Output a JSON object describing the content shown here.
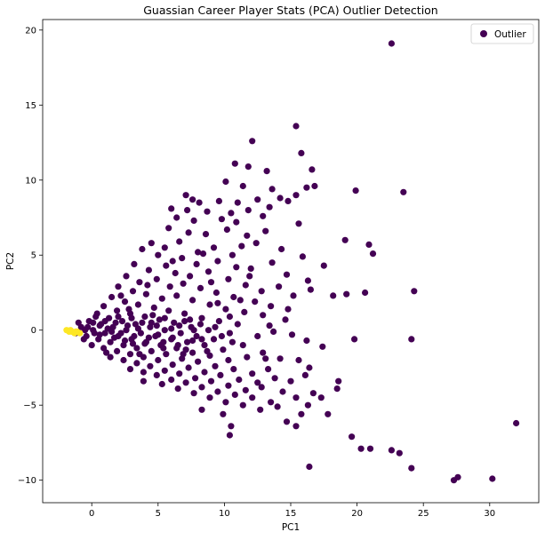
{
  "chart_data": {
    "type": "scatter",
    "title": "Guassian Career Player Stats (PCA) Outlier Detection",
    "xlabel": "PC1",
    "ylabel": "PC2",
    "xlim": [
      -3.7,
      33.7
    ],
    "ylim": [
      -11.5,
      20.7
    ],
    "xticks": [
      0,
      5,
      10,
      15,
      20,
      25,
      30
    ],
    "yticks": [
      -10,
      -5,
      0,
      5,
      10,
      15,
      20
    ],
    "grid": false,
    "legend": {
      "placement": "top-right",
      "entries": [
        "Outlier"
      ]
    },
    "colors": {
      "inlier": "#440154",
      "outlier": "#fde725"
    },
    "series": [
      {
        "name": "Outlier",
        "color": "#440154",
        "points": [
          [
            22.6,
            19.1
          ],
          [
            15.4,
            13.6
          ],
          [
            12.1,
            12.6
          ],
          [
            15.8,
            11.8
          ],
          [
            10.8,
            11.1
          ],
          [
            11.8,
            10.9
          ],
          [
            13.2,
            10.6
          ],
          [
            16.6,
            10.7
          ],
          [
            10.1,
            9.9
          ],
          [
            11.4,
            9.6
          ],
          [
            13.6,
            9.4
          ],
          [
            15.4,
            9.0
          ],
          [
            16.2,
            9.5
          ],
          [
            16.8,
            9.6
          ],
          [
            19.9,
            9.3
          ],
          [
            23.5,
            9.2
          ],
          [
            7.1,
            9.0
          ],
          [
            7.6,
            8.7
          ],
          [
            8.1,
            8.5
          ],
          [
            9.6,
            8.6
          ],
          [
            11.0,
            8.5
          ],
          [
            12.5,
            8.7
          ],
          [
            14.2,
            8.8
          ],
          [
            14.8,
            8.6
          ],
          [
            6.0,
            8.1
          ],
          [
            7.2,
            8.0
          ],
          [
            8.7,
            7.9
          ],
          [
            10.5,
            7.8
          ],
          [
            11.8,
            8.0
          ],
          [
            13.4,
            8.2
          ],
          [
            6.4,
            7.5
          ],
          [
            7.7,
            7.3
          ],
          [
            9.8,
            7.4
          ],
          [
            10.9,
            7.2
          ],
          [
            12.9,
            7.6
          ],
          [
            15.6,
            7.1
          ],
          [
            5.8,
            6.8
          ],
          [
            7.3,
            6.5
          ],
          [
            8.6,
            6.4
          ],
          [
            10.2,
            6.7
          ],
          [
            11.7,
            6.3
          ],
          [
            13.1,
            6.6
          ],
          [
            19.1,
            6.0
          ],
          [
            20.9,
            5.7
          ],
          [
            21.2,
            5.1
          ],
          [
            14.3,
            5.4
          ],
          [
            15.9,
            4.9
          ],
          [
            17.5,
            4.3
          ],
          [
            4.5,
            5.8
          ],
          [
            5.5,
            5.5
          ],
          [
            6.6,
            5.9
          ],
          [
            8.0,
            5.2
          ],
          [
            9.2,
            5.5
          ],
          [
            10.6,
            5.0
          ],
          [
            11.3,
            5.6
          ],
          [
            12.4,
            5.8
          ],
          [
            13.6,
            4.5
          ],
          [
            3.8,
            5.4
          ],
          [
            5.0,
            5.0
          ],
          [
            6.8,
            4.8
          ],
          [
            7.9,
            4.4
          ],
          [
            9.5,
            4.6
          ],
          [
            10.9,
            4.2
          ],
          [
            12.0,
            4.1
          ],
          [
            14.7,
            3.7
          ],
          [
            16.3,
            3.3
          ],
          [
            3.2,
            4.4
          ],
          [
            4.3,
            4.0
          ],
          [
            5.6,
            4.3
          ],
          [
            6.3,
            3.8
          ],
          [
            7.4,
            3.6
          ],
          [
            8.8,
            3.9
          ],
          [
            10.3,
            3.4
          ],
          [
            11.6,
            3.0
          ],
          [
            12.8,
            2.6
          ],
          [
            14.1,
            2.9
          ],
          [
            15.2,
            2.3
          ],
          [
            16.5,
            2.7
          ],
          [
            18.2,
            2.3
          ],
          [
            19.2,
            2.4
          ],
          [
            20.6,
            2.5
          ],
          [
            24.3,
            2.6
          ],
          [
            2.6,
            3.6
          ],
          [
            3.6,
            3.2
          ],
          [
            4.9,
            3.4
          ],
          [
            5.9,
            2.9
          ],
          [
            6.9,
            3.1
          ],
          [
            8.2,
            2.8
          ],
          [
            9.4,
            2.5
          ],
          [
            10.7,
            2.2
          ],
          [
            12.3,
            1.9
          ],
          [
            13.5,
            1.6
          ],
          [
            14.8,
            1.4
          ],
          [
            2.0,
            2.9
          ],
          [
            3.1,
            2.6
          ],
          [
            4.1,
            2.4
          ],
          [
            5.3,
            2.1
          ],
          [
            6.4,
            2.3
          ],
          [
            7.6,
            2.0
          ],
          [
            8.9,
            1.7
          ],
          [
            10.1,
            1.4
          ],
          [
            11.5,
            1.2
          ],
          [
            12.9,
            1.0
          ],
          [
            1.5,
            2.2
          ],
          [
            2.5,
            1.9
          ],
          [
            3.5,
            1.7
          ],
          [
            4.7,
            1.5
          ],
          [
            5.8,
            1.3
          ],
          [
            7.0,
            1.1
          ],
          [
            8.3,
            0.8
          ],
          [
            9.6,
            0.6
          ],
          [
            11.0,
            0.4
          ],
          [
            0.9,
            1.6
          ],
          [
            1.9,
            1.3
          ],
          [
            2.9,
            1.1
          ],
          [
            4.0,
            0.9
          ],
          [
            5.1,
            0.7
          ],
          [
            6.2,
            0.5
          ],
          [
            7.5,
            0.2
          ],
          [
            8.8,
            0.0
          ],
          [
            10.4,
            -0.2
          ],
          [
            12.5,
            -0.4
          ],
          [
            13.7,
            -0.1
          ],
          [
            0.4,
            1.1
          ],
          [
            1.3,
            0.8
          ],
          [
            2.3,
            0.6
          ],
          [
            3.3,
            0.4
          ],
          [
            4.4,
            0.2
          ],
          [
            5.5,
            0.0
          ],
          [
            6.7,
            -0.2
          ],
          [
            7.9,
            -0.4
          ],
          [
            9.2,
            -0.6
          ],
          [
            10.6,
            -0.8
          ],
          [
            -0.2,
            0.6
          ],
          [
            0.7,
            0.4
          ],
          [
            1.6,
            0.2
          ],
          [
            2.6,
            0.0
          ],
          [
            3.7,
            -0.2
          ],
          [
            4.8,
            -0.4
          ],
          [
            6.0,
            -0.6
          ],
          [
            7.2,
            -0.8
          ],
          [
            8.5,
            -1.0
          ],
          [
            9.9,
            -1.3
          ],
          [
            11.4,
            -1.0
          ],
          [
            15.1,
            -0.3
          ],
          [
            16.2,
            -0.7
          ],
          [
            24.1,
            -0.6
          ],
          [
            -0.8,
            0.2
          ],
          [
            0.1,
            0.0
          ],
          [
            1.0,
            -0.2
          ],
          [
            2.0,
            -0.4
          ],
          [
            3.0,
            -0.6
          ],
          [
            4.1,
            -0.8
          ],
          [
            5.2,
            -1.0
          ],
          [
            6.4,
            -1.2
          ],
          [
            7.6,
            -1.5
          ],
          [
            8.9,
            -1.7
          ],
          [
            10.3,
            -2.0
          ],
          [
            11.7,
            -1.8
          ],
          [
            12.9,
            -1.5
          ],
          [
            14.2,
            -1.9
          ],
          [
            -1.2,
            -0.2
          ],
          [
            -0.4,
            -0.4
          ],
          [
            0.5,
            -0.6
          ],
          [
            1.4,
            -0.8
          ],
          [
            2.4,
            -1.0
          ],
          [
            3.4,
            -1.2
          ],
          [
            4.5,
            -1.4
          ],
          [
            5.6,
            -1.6
          ],
          [
            6.8,
            -1.9
          ],
          [
            8.0,
            -2.1
          ],
          [
            9.3,
            -2.4
          ],
          [
            10.7,
            -2.6
          ],
          [
            12.1,
            -2.9
          ],
          [
            13.3,
            -2.6
          ],
          [
            15.6,
            -2.0
          ],
          [
            16.4,
            -2.5
          ],
          [
            0.0,
            -1.0
          ],
          [
            0.9,
            -1.2
          ],
          [
            1.9,
            -1.4
          ],
          [
            2.9,
            -1.6
          ],
          [
            3.9,
            -1.8
          ],
          [
            5.0,
            -2.0
          ],
          [
            6.1,
            -2.3
          ],
          [
            7.3,
            -2.5
          ],
          [
            8.5,
            -2.8
          ],
          [
            9.7,
            -3.0
          ],
          [
            11.1,
            -3.3
          ],
          [
            12.5,
            -3.5
          ],
          [
            13.8,
            -3.2
          ],
          [
            15.0,
            -3.4
          ],
          [
            16.1,
            -3.0
          ],
          [
            18.6,
            -3.4
          ],
          [
            1.4,
            -1.8
          ],
          [
            2.4,
            -2.0
          ],
          [
            3.4,
            -2.2
          ],
          [
            4.4,
            -2.4
          ],
          [
            5.5,
            -2.7
          ],
          [
            6.6,
            -2.9
          ],
          [
            7.8,
            -3.2
          ],
          [
            9.0,
            -3.4
          ],
          [
            10.3,
            -3.7
          ],
          [
            11.6,
            -4.0
          ],
          [
            12.8,
            -3.8
          ],
          [
            14.4,
            -4.1
          ],
          [
            15.4,
            -4.5
          ],
          [
            2.9,
            -2.6
          ],
          [
            3.9,
            -2.8
          ],
          [
            4.9,
            -3.0
          ],
          [
            6.0,
            -3.3
          ],
          [
            7.1,
            -3.5
          ],
          [
            8.3,
            -3.8
          ],
          [
            9.5,
            -4.1
          ],
          [
            10.8,
            -4.3
          ],
          [
            12.1,
            -4.5
          ],
          [
            13.5,
            -4.8
          ],
          [
            16.7,
            -4.2
          ],
          [
            17.3,
            -4.5
          ],
          [
            18.5,
            -3.9
          ],
          [
            3.9,
            -3.4
          ],
          [
            5.3,
            -3.6
          ],
          [
            6.5,
            -3.9
          ],
          [
            7.7,
            -4.2
          ],
          [
            8.9,
            -4.5
          ],
          [
            10.1,
            -4.8
          ],
          [
            11.4,
            -5.0
          ],
          [
            12.7,
            -5.3
          ],
          [
            14.0,
            -5.1
          ],
          [
            15.8,
            -5.6
          ],
          [
            17.8,
            -5.6
          ],
          [
            16.3,
            -5.0
          ],
          [
            8.3,
            -5.3
          ],
          [
            9.9,
            -5.6
          ],
          [
            14.7,
            -6.1
          ],
          [
            15.4,
            -6.4
          ],
          [
            10.5,
            -6.4
          ],
          [
            10.4,
            -7.0
          ],
          [
            19.6,
            -7.1
          ],
          [
            20.3,
            -7.9
          ],
          [
            21.0,
            -7.9
          ],
          [
            22.6,
            -8.0
          ],
          [
            23.2,
            -8.2
          ],
          [
            16.4,
            -9.1
          ],
          [
            24.1,
            -9.2
          ],
          [
            27.6,
            -9.8
          ],
          [
            27.3,
            -10.0
          ],
          [
            30.2,
            -9.9
          ],
          [
            32.0,
            -6.2
          ],
          [
            19.8,
            -0.6
          ],
          [
            17.4,
            -1.1
          ],
          [
            14.6,
            0.7
          ],
          [
            13.1,
            -1.9
          ],
          [
            6.1,
            4.6
          ],
          [
            8.4,
            5.1
          ],
          [
            9.0,
            3.2
          ],
          [
            11.9,
            3.6
          ],
          [
            4.2,
            3.0
          ],
          [
            2.2,
            2.3
          ],
          [
            3.1,
            -0.9
          ],
          [
            1.1,
            -1.5
          ],
          [
            -0.6,
            -0.6
          ],
          [
            -1.0,
            0.5
          ],
          [
            0.3,
            0.9
          ],
          [
            2.8,
            1.4
          ],
          [
            5.4,
            -0.8
          ],
          [
            6.9,
            -1.6
          ],
          [
            9.5,
            1.8
          ],
          [
            11.2,
            2.0
          ],
          [
            13.4,
            0.3
          ],
          [
            7.4,
            0.7
          ],
          [
            4.6,
            1.0
          ],
          [
            3.6,
            -1.6
          ],
          [
            1.8,
            0.5
          ],
          [
            0.2,
            -0.2
          ],
          [
            -0.3,
            0.2
          ],
          [
            0.6,
            0.3
          ],
          [
            1.2,
            0.1
          ],
          [
            1.7,
            -0.5
          ],
          [
            2.2,
            -0.2
          ],
          [
            2.7,
            0.3
          ],
          [
            3.2,
            -0.4
          ],
          [
            3.8,
            0.5
          ],
          [
            4.3,
            -0.5
          ],
          [
            4.9,
            0.3
          ],
          [
            5.4,
            -1.2
          ],
          [
            6.0,
            0.1
          ],
          [
            6.5,
            -1.0
          ],
          [
            7.0,
            0.6
          ],
          [
            7.6,
            -0.7
          ],
          [
            8.2,
            0.4
          ],
          [
            8.7,
            -1.4
          ],
          [
            9.3,
            0.2
          ],
          [
            9.8,
            -0.4
          ],
          [
            10.4,
            0.9
          ],
          [
            2.0,
            0.9
          ],
          [
            2.5,
            -0.7
          ],
          [
            3.0,
            0.8
          ],
          [
            3.5,
            0.1
          ],
          [
            4.0,
            -0.9
          ],
          [
            4.5,
            0.5
          ],
          [
            5.0,
            -0.3
          ],
          [
            5.5,
            0.8
          ],
          [
            6.1,
            -0.5
          ],
          [
            6.6,
            0.3
          ],
          [
            7.1,
            -1.3
          ],
          [
            7.7,
            0.0
          ],
          [
            8.3,
            -0.6
          ],
          [
            1.0,
            0.6
          ],
          [
            1.5,
            -0.1
          ],
          [
            0.6,
            -0.3
          ],
          [
            0.1,
            0.5
          ],
          [
            -0.5,
            0.0
          ]
        ]
      },
      {
        "name": "",
        "color": "#fde725",
        "points": [
          [
            -1.9,
            0.0
          ],
          [
            -1.7,
            -0.1
          ],
          [
            -1.5,
            -0.1
          ],
          [
            -1.3,
            -0.2
          ],
          [
            -1.1,
            -0.1
          ],
          [
            -0.9,
            -0.2
          ],
          [
            -1.6,
            0.0
          ],
          [
            -1.2,
            -0.1
          ]
        ]
      }
    ]
  }
}
